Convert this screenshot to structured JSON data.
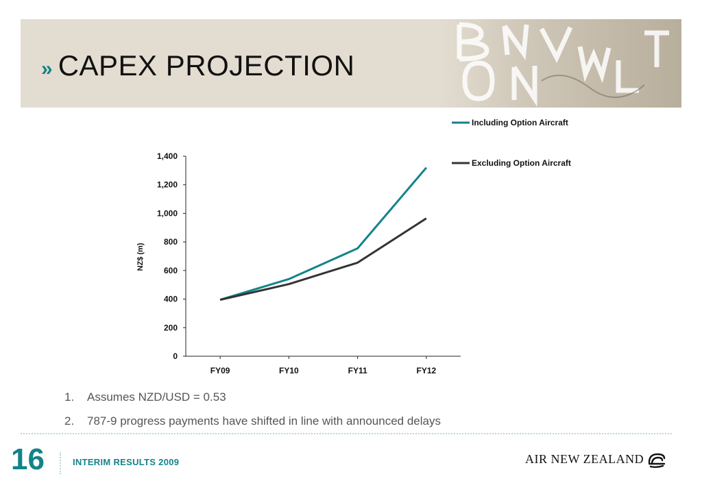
{
  "header": {
    "chevron": "»",
    "title": "CAPEX PROJECTION"
  },
  "chart_data": {
    "type": "line",
    "categories": [
      "FY09",
      "FY10",
      "FY11",
      "FY12"
    ],
    "series": [
      {
        "name": "Including Option Aircraft",
        "values": [
          395,
          540,
          755,
          1320
        ],
        "color": "#13838a"
      },
      {
        "name": "Excluding Option Aircraft",
        "values": [
          395,
          505,
          655,
          965
        ],
        "color": "#333333"
      }
    ],
    "title": "",
    "xlabel": "",
    "ylabel": "NZ$ (m)",
    "ylim": [
      0,
      1400
    ],
    "yticks": [
      0,
      200,
      400,
      600,
      800,
      1000,
      1200,
      1400
    ],
    "ytick_labels": [
      "0",
      "200",
      "400",
      "600",
      "800",
      "1,000",
      "1,200",
      "1,400"
    ],
    "grid": false,
    "legend": "top-right"
  },
  "notes": [
    {
      "num": "1.",
      "text": "Assumes NZD/USD = 0.53"
    },
    {
      "num": "2.",
      "text": "787-9 progress payments have shifted in line with announced delays"
    }
  ],
  "footer": {
    "page_number": "16",
    "label": "INTERIM RESULTS 2009",
    "logo_text": "AIR NEW ZEALAND",
    "logo_icon": "koru-icon"
  },
  "colors": {
    "accent": "#13838a",
    "header_bg": "#e3ddd1"
  }
}
